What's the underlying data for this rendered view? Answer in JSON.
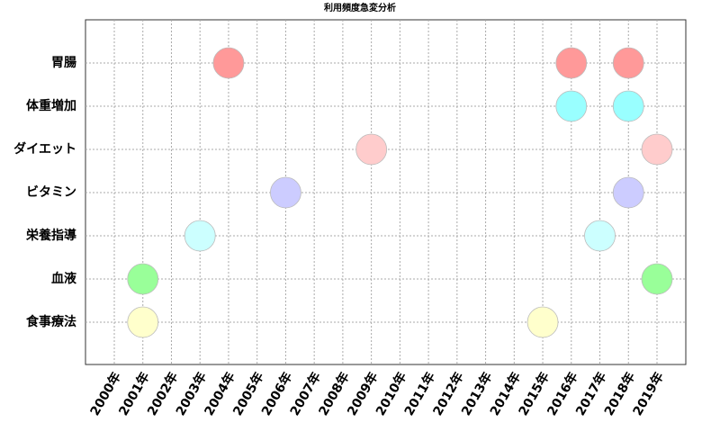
{
  "chart_data": {
    "type": "scatter",
    "title": "利用頻度急変分析",
    "categories": [
      "2000年",
      "2001年",
      "2002年",
      "2003年",
      "2004年",
      "2005年",
      "2006年",
      "2007年",
      "2008年",
      "2009年",
      "2010年",
      "2011年",
      "2012年",
      "2013年",
      "2014年",
      "2015年",
      "2016年",
      "2017年",
      "2018年",
      "2019年"
    ],
    "grid": true,
    "series": [
      {
        "name": "胃腸",
        "color": "#ff9999",
        "x": [
          "2004年",
          "2016年",
          "2018年"
        ]
      },
      {
        "name": "体重増加",
        "color": "#99ffff",
        "x": [
          "2016年",
          "2018年"
        ]
      },
      {
        "name": "ダイエット",
        "color": "#ffcccc",
        "x": [
          "2009年",
          "2019年"
        ]
      },
      {
        "name": "ビタミン",
        "color": "#ccccff",
        "x": [
          "2006年",
          "2018年"
        ]
      },
      {
        "name": "栄養指導",
        "color": "#ccffff",
        "x": [
          "2003年",
          "2017年"
        ]
      },
      {
        "name": "血液",
        "color": "#99ff99",
        "x": [
          "2001年",
          "2019年"
        ]
      },
      {
        "name": "食事療法",
        "color": "#ffffcc",
        "x": [
          "2001年",
          "2015年"
        ]
      }
    ]
  }
}
